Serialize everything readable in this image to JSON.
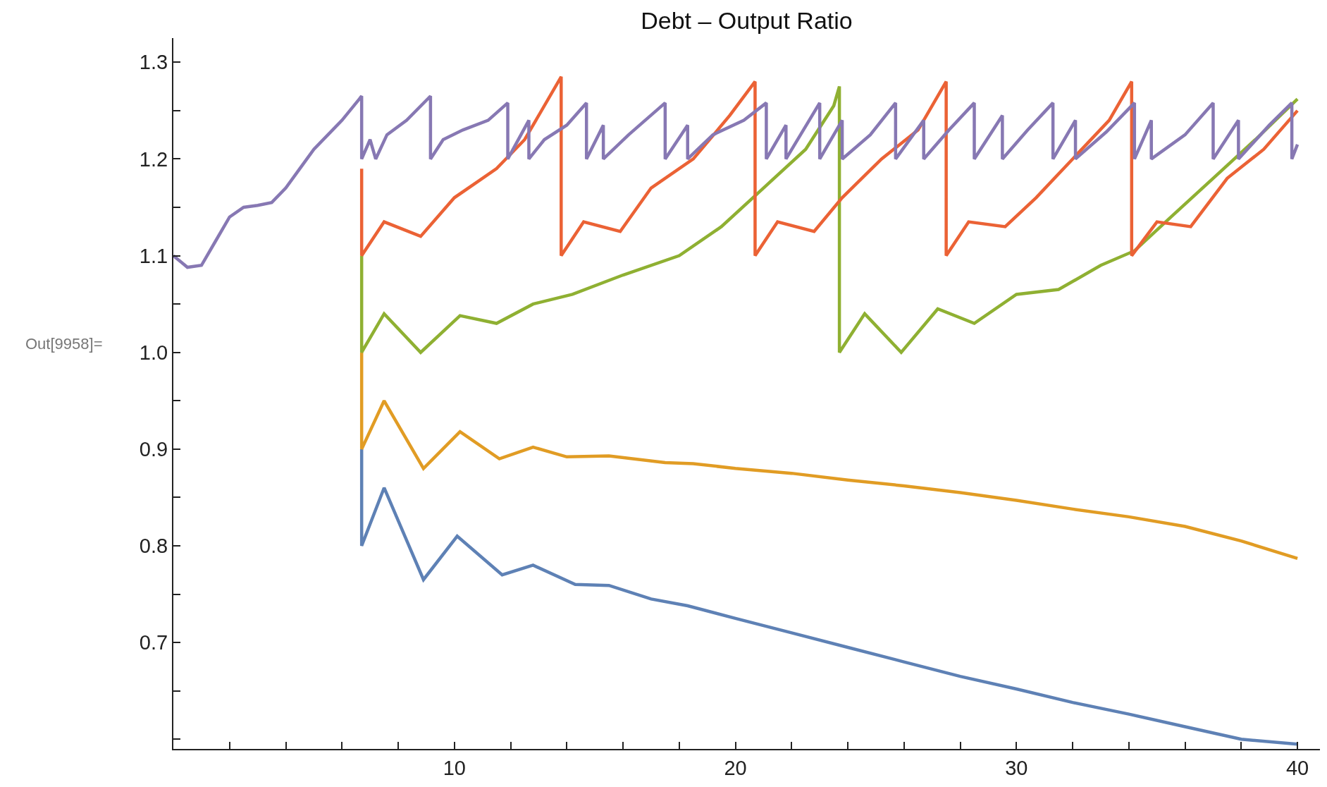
{
  "chart_data": {
    "type": "line",
    "title": "Debt – Output Ratio",
    "annotations": [
      "Out[9958]="
    ],
    "grid": false,
    "marker": "none",
    "line_style": "solid",
    "xlim": [
      0,
      40.8
    ],
    "ylim": [
      0.59,
      1.325
    ],
    "xticks": [
      {
        "value": 2,
        "label": null
      },
      {
        "value": 4,
        "label": null
      },
      {
        "value": 6,
        "label": null
      },
      {
        "value": 8,
        "label": null
      },
      10,
      {
        "value": 12,
        "label": null
      },
      {
        "value": 14,
        "label": null
      },
      {
        "value": 16,
        "label": null
      },
      {
        "value": 18,
        "label": null
      },
      20,
      {
        "value": 22,
        "label": null
      },
      {
        "value": 24,
        "label": null
      },
      {
        "value": 26,
        "label": null
      },
      {
        "value": 28,
        "label": null
      },
      30,
      {
        "value": 32,
        "label": null
      },
      {
        "value": 34,
        "label": null
      },
      {
        "value": 36,
        "label": null
      },
      {
        "value": 38,
        "label": null
      },
      40
    ],
    "yticks": [
      {
        "value": 0.6,
        "label": null
      },
      {
        "value": 0.65,
        "label": null
      },
      0.7,
      {
        "value": 0.75,
        "label": null
      },
      0.8,
      {
        "value": 0.85,
        "label": null
      },
      0.9,
      {
        "value": 0.95,
        "label": null
      },
      {
        "value": 1.0,
        "label": "1.0"
      },
      {
        "value": 1.05,
        "label": null
      },
      1.1,
      {
        "value": 1.15,
        "label": null
      },
      1.2,
      {
        "value": 1.25,
        "label": null
      },
      1.3
    ],
    "series": [
      {
        "color": "#5e81b5",
        "x": [
          6.7,
          6.7,
          7.5,
          8.9,
          10.1,
          11.7,
          12.8,
          14.3,
          15.5,
          17,
          18.3,
          20,
          22,
          24,
          26,
          28,
          30,
          32,
          34,
          36,
          38,
          40
        ],
        "values": [
          0.9,
          0.8,
          0.86,
          0.765,
          0.81,
          0.77,
          0.78,
          0.76,
          0.759,
          0.745,
          0.738,
          0.725,
          0.71,
          0.695,
          0.68,
          0.665,
          0.652,
          0.638,
          0.626,
          0.613,
          0.6,
          0.595
        ]
      },
      {
        "color": "#e19c24",
        "x": [
          6.7,
          6.7,
          7.5,
          8.9,
          10.2,
          11.6,
          12.8,
          14,
          15.5,
          17.5,
          18.5,
          20,
          22,
          24,
          26,
          28,
          30,
          32,
          34,
          36,
          38,
          40
        ],
        "values": [
          1.0,
          0.9,
          0.95,
          0.88,
          0.918,
          0.89,
          0.902,
          0.892,
          0.893,
          0.886,
          0.885,
          0.88,
          0.875,
          0.868,
          0.862,
          0.855,
          0.847,
          0.838,
          0.83,
          0.82,
          0.805,
          0.787
        ]
      },
      {
        "color": "#8fb032",
        "x": [
          6.7,
          6.7,
          7.5,
          8.8,
          10.2,
          11.5,
          12.8,
          14.2,
          16,
          18,
          19.5,
          21,
          22.5,
          23.5,
          23.7,
          23.7,
          24.6,
          25.9,
          27.2,
          28.5,
          30,
          31.5,
          33,
          34.2,
          35.5,
          37,
          38.5,
          40
        ],
        "values": [
          1.1,
          1.0,
          1.04,
          1.0,
          1.038,
          1.03,
          1.05,
          1.06,
          1.08,
          1.1,
          1.13,
          1.17,
          1.21,
          1.255,
          1.275,
          1.0,
          1.04,
          1.0,
          1.045,
          1.03,
          1.06,
          1.065,
          1.09,
          1.105,
          1.14,
          1.18,
          1.22,
          1.262
        ]
      },
      {
        "color": "#eb6235",
        "x": [
          6.7,
          6.7,
          7.5,
          8.8,
          10,
          11.5,
          12.5,
          13.8,
          13.8,
          14.6,
          15.9,
          17,
          18.5,
          19.8,
          20.7,
          20.7,
          21.5,
          22.8,
          23.8,
          25.2,
          26.5,
          27.5,
          27.5,
          28.3,
          29.6,
          30.7,
          32,
          33.3,
          34.1,
          34.1,
          35,
          36.2,
          37.5,
          38.8,
          40
        ],
        "values": [
          1.19,
          1.1,
          1.135,
          1.12,
          1.16,
          1.19,
          1.22,
          1.285,
          1.1,
          1.135,
          1.125,
          1.17,
          1.2,
          1.245,
          1.28,
          1.1,
          1.135,
          1.125,
          1.16,
          1.2,
          1.23,
          1.28,
          1.1,
          1.135,
          1.13,
          1.16,
          1.2,
          1.24,
          1.28,
          1.1,
          1.135,
          1.13,
          1.18,
          1.21,
          1.25
        ]
      },
      {
        "color": "#8778b3",
        "x": [
          0,
          0.5,
          1,
          1.5,
          2,
          2.5,
          3,
          3.5,
          4,
          4.5,
          5,
          5.5,
          6,
          6.7,
          6.7,
          7.0,
          7.2,
          7.6,
          8.3,
          9.15,
          9.15,
          9.6,
          10.3,
          11.2,
          11.9,
          11.9,
          12.65,
          12.65,
          13.2,
          14.0,
          14.7,
          14.7,
          15.3,
          15.3,
          16.2,
          17.5,
          17.5,
          18.3,
          18.3,
          19.2,
          20.3,
          21.1,
          21.1,
          21.8,
          21.8,
          23.0,
          23.0,
          23.8,
          23.8,
          24.8,
          25.7,
          25.7,
          26.7,
          26.7,
          27.6,
          28.5,
          28.5,
          29.5,
          29.5,
          30.4,
          31.3,
          31.3,
          32.1,
          32.1,
          33.2,
          34.2,
          34.2,
          34.8,
          34.8,
          36,
          37.0,
          37.0,
          37.9,
          37.9,
          39.0,
          39.8,
          39.8,
          40
        ],
        "values": [
          1.1,
          1.088,
          1.09,
          1.115,
          1.14,
          1.15,
          1.152,
          1.155,
          1.17,
          1.19,
          1.21,
          1.225,
          1.24,
          1.265,
          1.2,
          1.22,
          1.2,
          1.225,
          1.24,
          1.265,
          1.2,
          1.22,
          1.23,
          1.24,
          1.258,
          1.2,
          1.24,
          1.2,
          1.22,
          1.235,
          1.258,
          1.2,
          1.235,
          1.2,
          1.225,
          1.258,
          1.2,
          1.235,
          1.2,
          1.225,
          1.24,
          1.258,
          1.2,
          1.235,
          1.2,
          1.258,
          1.2,
          1.24,
          1.2,
          1.225,
          1.258,
          1.2,
          1.24,
          1.2,
          1.23,
          1.258,
          1.2,
          1.245,
          1.2,
          1.23,
          1.258,
          1.2,
          1.24,
          1.2,
          1.228,
          1.258,
          1.2,
          1.24,
          1.2,
          1.225,
          1.258,
          1.2,
          1.24,
          1.2,
          1.235,
          1.258,
          1.2,
          1.215
        ]
      }
    ]
  }
}
